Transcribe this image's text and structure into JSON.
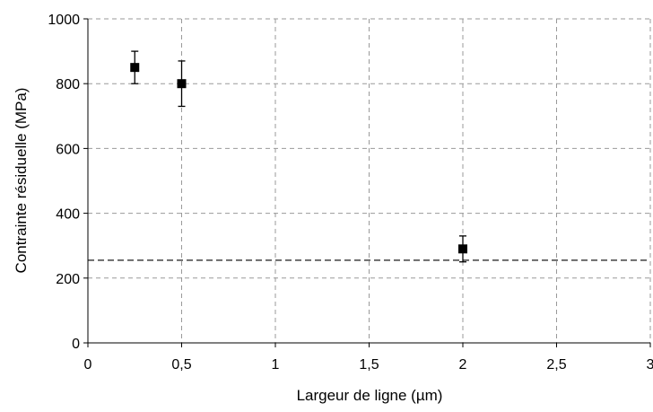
{
  "chart_data": {
    "type": "scatter",
    "xlabel": "Largeur de ligne (µm)",
    "ylabel": "Contrainte résiduelle (MPa)",
    "xlim": [
      0,
      3
    ],
    "ylim": [
      0,
      1000
    ],
    "x_ticks": [
      0,
      0.5,
      1,
      1.5,
      2,
      2.5,
      3
    ],
    "x_tick_labels": [
      "0",
      "0,5",
      "1",
      "1,5",
      "2",
      "2,5",
      "3"
    ],
    "y_ticks": [
      0,
      200,
      400,
      600,
      800,
      1000
    ],
    "y_tick_labels": [
      "0",
      "200",
      "400",
      "600",
      "800",
      "1000"
    ],
    "grid": "dashed",
    "legend": "none",
    "series": [
      {
        "marker": "square",
        "color": "#000000",
        "points": [
          {
            "x": 0.25,
            "y": 850,
            "err_low": 800,
            "err_high": 900
          },
          {
            "x": 0.5,
            "y": 800,
            "err_low": 730,
            "err_high": 870
          },
          {
            "x": 2,
            "y": 290,
            "err_low": 250,
            "err_high": 330
          }
        ]
      }
    ],
    "reference_line": {
      "y": 255,
      "style": "dashed",
      "color": "#000000"
    }
  }
}
